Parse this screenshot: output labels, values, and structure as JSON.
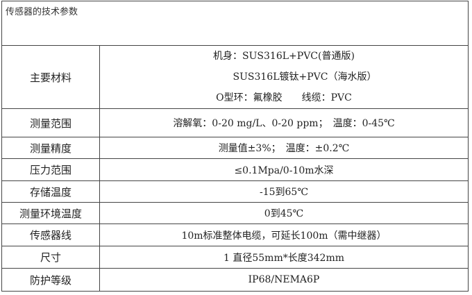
{
  "title": "传感器的技术参数",
  "rows": [
    {
      "label": "主要材料",
      "lines": [
        "机身：SUS316L+PVC(普通版)",
        "SUS316L镀钛+PVC（海水版）",
        "O型环：氟橡胶　　线缆：PVC"
      ]
    },
    {
      "label": "测量范围",
      "lines": [
        "溶解氧：0-20 mg/L、0-20 ppm；　温度：0-45℃"
      ]
    },
    {
      "label": "测量精度",
      "lines": [
        "测量值±3%；　温度：±0.2℃"
      ]
    },
    {
      "label": "压力范围",
      "lines": [
        "≤0.1Mpa/0-10m水深"
      ]
    },
    {
      "label": "存储温度",
      "lines": [
        "-15到65℃"
      ]
    },
    {
      "label": "测量环境温度",
      "lines": [
        "0到45℃"
      ]
    },
    {
      "label": "传感器线",
      "lines": [
        "10m标准整体电缆，可延长100m（需中继器）"
      ]
    },
    {
      "label": "尺寸",
      "lines": [
        "1 直径55mm*长度342mm"
      ]
    },
    {
      "label": "防护等级",
      "lines": [
        "IP68/NEMA6P"
      ]
    }
  ]
}
